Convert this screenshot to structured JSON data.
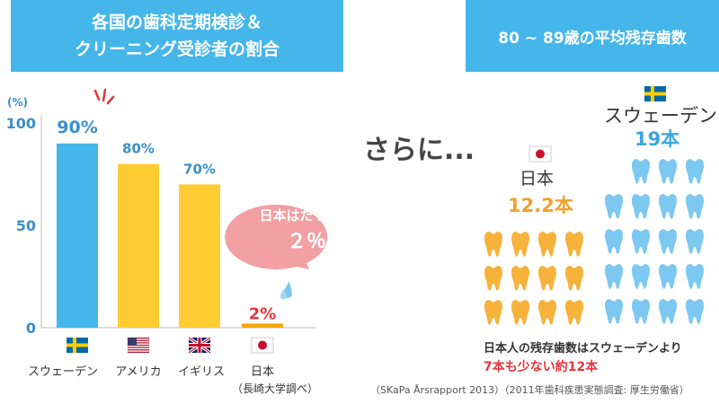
{
  "header_left": {
    "line1": "各国の歯科定期検診＆",
    "line2": "クリーニング受診者の割合"
  },
  "header_right": "80 ~ 89歳の平均残存歯数",
  "chart_data": {
    "type": "bar",
    "y_unit_label": "(%)",
    "yticks": [
      100,
      50,
      0
    ],
    "ylim": [
      0,
      100
    ],
    "categories": [
      "スウェーデン",
      "アメリカ",
      "イギリス",
      "日本"
    ],
    "values": [
      90,
      80,
      70,
      2
    ],
    "value_labels": [
      "90%",
      "80%",
      "70%",
      "2%"
    ],
    "bar_colors": [
      "#45b6ea",
      "#ffcc33",
      "#ffcc33",
      "#f5a800"
    ],
    "label_colors": [
      "#3a8fc9",
      "#3a8fc9",
      "#3a8fc9",
      "#e2363d"
    ],
    "source_note": "（長崎大学調べ）"
  },
  "callout": {
    "line1": "日本はたったの",
    "line2": "２％",
    "color": "#f2a0a3"
  },
  "sarani": "さらに...",
  "teeth_compare": {
    "japan": {
      "name": "日本",
      "count_label": "12.2本",
      "teeth": 12,
      "color": "#f6b23a"
    },
    "sweden": {
      "name": "スウェーデン",
      "count_label": "19本",
      "teeth": 19,
      "color": "#7cc8f0"
    }
  },
  "summary": {
    "line1": "日本人の残存歯数はスウェーデンより",
    "line2": "7本も少ない約12本"
  },
  "source": "（SKaPa Årsrapport 2013）（2011年歯科疾患実態調査: 厚生労働省）"
}
